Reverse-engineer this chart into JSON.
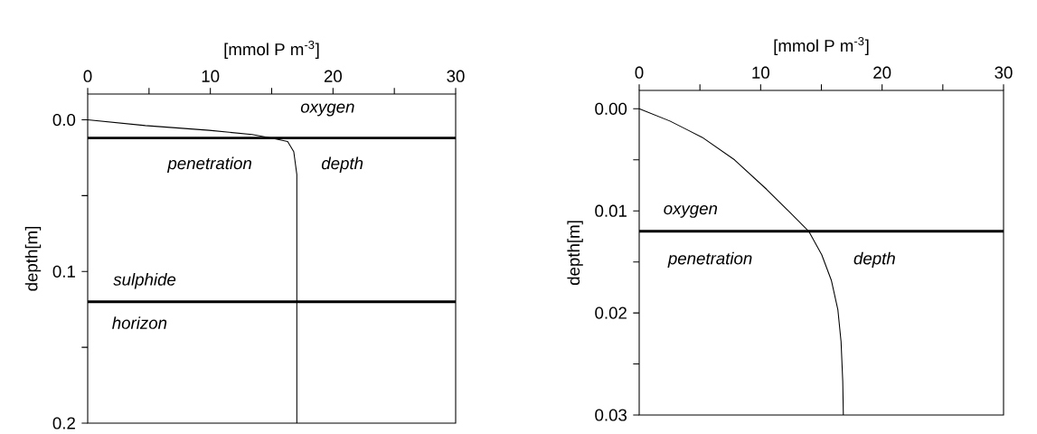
{
  "chart_data": [
    {
      "type": "line",
      "xlabel": "[mmol P m$^{-3}$]",
      "ylabel": "depth[m]",
      "xlim": [
        0,
        30
      ],
      "xticks": [
        0,
        {
          "value": 5,
          "label": null
        },
        10,
        {
          "value": 15,
          "label": null
        },
        20,
        {
          "value": 25,
          "label": null
        },
        30
      ],
      "ylim": [
        0.2,
        -0.017
      ],
      "yticks": [
        {
          "value": 0,
          "label": "0.0"
        },
        {
          "value": 0.05,
          "label": null
        },
        0.1,
        {
          "value": 0.15,
          "label": null
        },
        0.2
      ],
      "series": [
        {
          "color": "#000000",
          "x": [
            0,
            4.7,
            9.9,
            13.4,
            15.0,
            16.3,
            16.8,
            17.05,
            17.05
          ],
          "values": [
            0,
            0.0038,
            0.0069,
            0.0097,
            0.012,
            0.0143,
            0.021,
            0.036,
            0.2
          ]
        }
      ],
      "ref_lines": [
        {
          "axis": "y",
          "value": 0.012,
          "color": "#000000"
        },
        {
          "axis": "y",
          "value": 0.12,
          "color": "#000000"
        }
      ],
      "annotations": [
        "oxygen",
        "penetration",
        "depth",
        "sulphide",
        "horizon"
      ]
    },
    {
      "type": "line",
      "xlabel": "[mmol P m$^{-3}$]",
      "ylabel": "depth[m]",
      "xlim": [
        0,
        30
      ],
      "xticks": [
        0,
        {
          "value": 5,
          "label": null
        },
        10,
        {
          "value": 15,
          "label": null
        },
        20,
        {
          "value": 25,
          "label": null
        },
        30
      ],
      "ylim": [
        0.03,
        -0.0018
      ],
      "yticks": [
        {
          "value": 0,
          "label": "0.00"
        },
        {
          "value": 0.005,
          "label": null
        },
        0.01,
        {
          "value": 0.015,
          "label": null
        },
        0.02,
        {
          "value": 0.025,
          "label": null
        },
        0.03
      ],
      "series": [
        {
          "color": "#000000",
          "x": [
            0,
            2.53,
            5.19,
            7.85,
            10.5,
            12.37,
            13.96,
            15.03,
            15.82,
            16.36,
            16.62,
            16.76,
            16.81
          ],
          "values": [
            0,
            0.0012,
            0.0028,
            0.005,
            0.0079,
            0.0101,
            0.012,
            0.0143,
            0.0168,
            0.0197,
            0.0228,
            0.0267,
            0.03
          ]
        }
      ],
      "ref_lines": [
        {
          "axis": "y",
          "value": 0.012,
          "color": "#000000"
        }
      ],
      "annotations": [
        "oxygen",
        "penetration",
        "depth"
      ]
    }
  ]
}
